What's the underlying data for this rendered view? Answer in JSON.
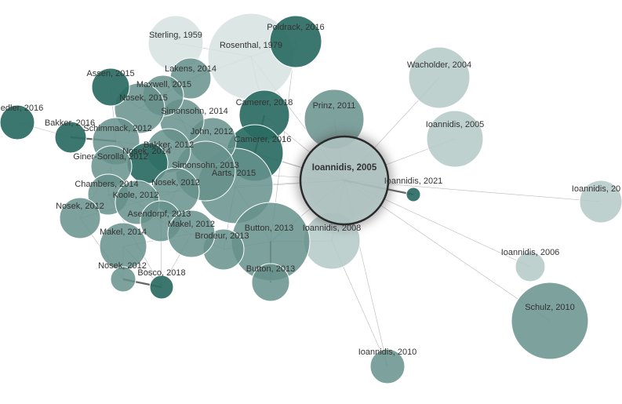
{
  "colors": {
    "dark": "#2a6b62",
    "mid": "#66918c",
    "light": "#b3c9c7",
    "pale": "#d5e2e0"
  },
  "nodes": [
    {
      "id": "rosenthal-1979",
      "label": "Rosenthal, 1979",
      "tone": "pale",
      "selected": false
    },
    {
      "id": "sterling-1959",
      "label": "Sterling, 1959",
      "tone": "pale",
      "selected": false
    },
    {
      "id": "poldrack-2016",
      "label": "Poldrack, 2016",
      "tone": "dark",
      "selected": false
    },
    {
      "id": "wacholder-2004",
      "label": "Wacholder, 2004",
      "tone": "light",
      "selected": false
    },
    {
      "id": "ioannidis-2005b",
      "label": "Ioannidis, 2005",
      "tone": "light",
      "selected": false
    },
    {
      "id": "ioannidis-20xx",
      "label": "Ioannidis, 20",
      "tone": "light",
      "selected": false
    },
    {
      "id": "ioannidis-2006",
      "label": "Ioannidis, 2006",
      "tone": "light",
      "selected": false
    },
    {
      "id": "schulz-2010",
      "label": "Schulz, 2010",
      "tone": "mid",
      "selected": false
    },
    {
      "id": "ioannidis-2010",
      "label": "Ioannidis, 2010",
      "tone": "mid",
      "selected": false
    },
    {
      "id": "ioannidis-2021",
      "label": "Ioannidis, 2021",
      "tone": "dark",
      "selected": false
    },
    {
      "id": "ioannidis-2008",
      "label": "Ioannidis, 2008",
      "tone": "light",
      "selected": false
    },
    {
      "id": "prinz-2011",
      "label": "Prinz, 2011",
      "tone": "mid",
      "selected": false
    },
    {
      "id": "camerer-2018",
      "label": "Camerer, 2018",
      "tone": "dark",
      "selected": false
    },
    {
      "id": "camerer-2016",
      "label": "Camerer, 2016",
      "tone": "dark",
      "selected": false
    },
    {
      "id": "aarts-2015",
      "label": "Aarts, 2015",
      "tone": "mid",
      "selected": false
    },
    {
      "id": "button-2013a",
      "label": "Button, 2013",
      "tone": "mid",
      "selected": false
    },
    {
      "id": "button-2013b",
      "label": "Button, 2013",
      "tone": "mid",
      "selected": false
    },
    {
      "id": "brodeur-2013",
      "label": "Brodeur, 2013",
      "tone": "mid",
      "selected": false
    },
    {
      "id": "john-2012",
      "label": "John, 2012",
      "tone": "mid",
      "selected": false
    },
    {
      "id": "simonsohn-2014",
      "label": "Simonsohn, 2014",
      "tone": "mid",
      "selected": false
    },
    {
      "id": "simonsohn-2013",
      "label": "Simonsohn, 2013",
      "tone": "mid",
      "selected": false
    },
    {
      "id": "lakens-2014",
      "label": "Lakens, 2014",
      "tone": "mid",
      "selected": false
    },
    {
      "id": "maxwell-2015",
      "label": "Maxwell, 2015",
      "tone": "mid",
      "selected": false
    },
    {
      "id": "nosek-2015",
      "label": "Nosek, 2015",
      "tone": "mid",
      "selected": false
    },
    {
      "id": "assen-2015",
      "label": "Assen, 2015",
      "tone": "dark",
      "selected": false
    },
    {
      "id": "fiedler-2016",
      "label": "edler, 2016",
      "tone": "dark",
      "selected": false
    },
    {
      "id": "bakker-2016",
      "label": "Bakker, 2016",
      "tone": "dark",
      "selected": false
    },
    {
      "id": "schimmack-2012",
      "label": "Schimmack, 2012",
      "tone": "mid",
      "selected": false
    },
    {
      "id": "bakker-2012",
      "label": "Bakker, 2012",
      "tone": "mid",
      "selected": false
    },
    {
      "id": "nosek-2014",
      "label": "Nosek, 2014",
      "tone": "dark",
      "selected": false
    },
    {
      "id": "giner-sorolla-2012",
      "label": "Giner-Sorolla, 2012",
      "tone": "mid",
      "selected": false
    },
    {
      "id": "chambers-2014",
      "label": "Chambers, 2014",
      "tone": "mid",
      "selected": false
    },
    {
      "id": "nosek-2012a",
      "label": "Nosek, 2012",
      "tone": "mid",
      "selected": false
    },
    {
      "id": "koole-2012",
      "label": "Koole, 2012",
      "tone": "mid",
      "selected": false
    },
    {
      "id": "nosek-2012b",
      "label": "Nosek, 2012",
      "tone": "mid",
      "selected": false
    },
    {
      "id": "asendorpf-2013",
      "label": "Asendorpf, 2013",
      "tone": "mid",
      "selected": false
    },
    {
      "id": "makel-2012",
      "label": "Makel, 2012",
      "tone": "mid",
      "selected": false
    },
    {
      "id": "makel-2014",
      "label": "Makel, 2014",
      "tone": "mid",
      "selected": false
    },
    {
      "id": "nosek-2012c",
      "label": "Nosek, 2012",
      "tone": "mid",
      "selected": false
    },
    {
      "id": "bosco-2018",
      "label": "Bosco, 2018",
      "tone": "dark",
      "selected": false
    },
    {
      "id": "ioannidis-2005",
      "label": "Ioannidis, 2005",
      "tone": "light",
      "selected": true
    }
  ],
  "edges": [
    [
      "ioannidis-2005",
      "ioannidis-2021",
      "strong"
    ],
    [
      "ioannidis-2005",
      "ioannidis-2008",
      "normal"
    ],
    [
      "ioannidis-2005",
      "ioannidis-2005b",
      "normal"
    ],
    [
      "ioannidis-2005",
      "ioannidis-20xx",
      "normal"
    ],
    [
      "ioannidis-2005",
      "ioannidis-2006",
      "normal"
    ],
    [
      "ioannidis-2005",
      "schulz-2010",
      "normal"
    ],
    [
      "ioannidis-2005",
      "ioannidis-2010",
      "normal"
    ],
    [
      "ioannidis-2005",
      "wacholder-2004",
      "normal"
    ],
    [
      "ioannidis-2005",
      "prinz-2011",
      "normal"
    ],
    [
      "ioannidis-2005",
      "camerer-2016",
      "normal"
    ],
    [
      "ioannidis-2005",
      "button-2013a",
      "normal"
    ],
    [
      "ioannidis-2005",
      "aarts-2015",
      "normal"
    ],
    [
      "ioannidis-2005",
      "rosenthal-1979",
      "normal"
    ],
    [
      "ioannidis-2005",
      "simonsohn-2013",
      "normal"
    ],
    [
      "ioannidis-2005",
      "john-2012",
      "normal"
    ],
    [
      "ioannidis-2005",
      "nosek-2012a",
      "normal"
    ],
    [
      "ioannidis-2005",
      "camerer-2018",
      "normal"
    ],
    [
      "ioannidis-2008",
      "ioannidis-2010",
      "normal"
    ],
    [
      "ioannidis-2008",
      "button-2013a",
      "normal"
    ],
    [
      "camerer-2018",
      "camerer-2016",
      "strong"
    ],
    [
      "button-2013a",
      "button-2013b",
      "strong"
    ],
    [
      "bosco-2018",
      "nosek-2012c",
      "strong"
    ],
    [
      "fiedler-2016",
      "bakker-2016",
      "normal"
    ],
    [
      "bakker-2016",
      "schimmack-2012",
      "strong"
    ],
    [
      "rosenthal-1979",
      "sterling-1959",
      "normal"
    ],
    [
      "rosenthal-1979",
      "poldrack-2016",
      "normal"
    ],
    [
      "rosenthal-1979",
      "lakens-2014",
      "normal"
    ],
    [
      "rosenthal-1979",
      "camerer-2018",
      "normal"
    ],
    [
      "poldrack-2016",
      "button-2013a",
      "normal"
    ],
    [
      "john-2012",
      "simonsohn-2014",
      "normal"
    ],
    [
      "john-2012",
      "simonsohn-2013",
      "normal"
    ],
    [
      "john-2012",
      "bakker-2012",
      "normal"
    ],
    [
      "simonsohn-2014",
      "simonsohn-2013",
      "normal"
    ],
    [
      "simonsohn-2013",
      "aarts-2015",
      "normal"
    ],
    [
      "aarts-2015",
      "camerer-2016",
      "normal"
    ],
    [
      "aarts-2015",
      "button-2013a",
      "normal"
    ],
    [
      "aarts-2015",
      "brodeur-2013",
      "normal"
    ],
    [
      "nosek-2015",
      "maxwell-2015",
      "normal"
    ],
    [
      "nosek-2015",
      "assen-2015",
      "normal"
    ],
    [
      "nosek-2015",
      "lakens-2014",
      "normal"
    ],
    [
      "nosek-2015",
      "simonsohn-2014",
      "normal"
    ],
    [
      "schimmack-2012",
      "nosek-2014",
      "normal"
    ],
    [
      "schimmack-2012",
      "bakker-2012",
      "normal"
    ],
    [
      "schimmack-2012",
      "giner-sorolla-2012",
      "normal"
    ],
    [
      "nosek-2014",
      "bakker-2012",
      "normal"
    ],
    [
      "giner-sorolla-2012",
      "chambers-2014",
      "normal"
    ],
    [
      "chambers-2014",
      "koole-2012",
      "normal"
    ],
    [
      "chambers-2014",
      "nosek-2012a",
      "normal"
    ],
    [
      "koole-2012",
      "nosek-2012a",
      "normal"
    ],
    [
      "koole-2012",
      "asendorpf-2013",
      "normal"
    ],
    [
      "nosek-2012a",
      "asendorpf-2013",
      "normal"
    ],
    [
      "nosek-2012b",
      "koole-2012",
      "normal"
    ],
    [
      "asendorpf-2013",
      "makel-2012",
      "normal"
    ],
    [
      "makel-2012",
      "makel-2014",
      "normal"
    ],
    [
      "makel-2012",
      "brodeur-2013",
      "normal"
    ],
    [
      "makel-2014",
      "nosek-2012c",
      "normal"
    ],
    [
      "makel-2014",
      "bosco-2018",
      "normal"
    ],
    [
      "makel-2012",
      "bosco-2018",
      "normal"
    ],
    [
      "asendorpf-2013",
      "bosco-2018",
      "normal"
    ],
    [
      "chambers-2014",
      "bosco-2018",
      "normal"
    ],
    [
      "nosek-2012b",
      "nosek-2012c",
      "normal"
    ],
    [
      "brodeur-2013",
      "button-2013a",
      "normal"
    ],
    [
      "nosek-2012a",
      "simonsohn-2013",
      "normal"
    ],
    [
      "maxwell-2015",
      "simonsohn-2014",
      "normal"
    ],
    [
      "assen-2015",
      "schimmack-2012",
      "normal"
    ],
    [
      "giner-sorolla-2012",
      "nosek-2012b",
      "normal"
    ]
  ]
}
